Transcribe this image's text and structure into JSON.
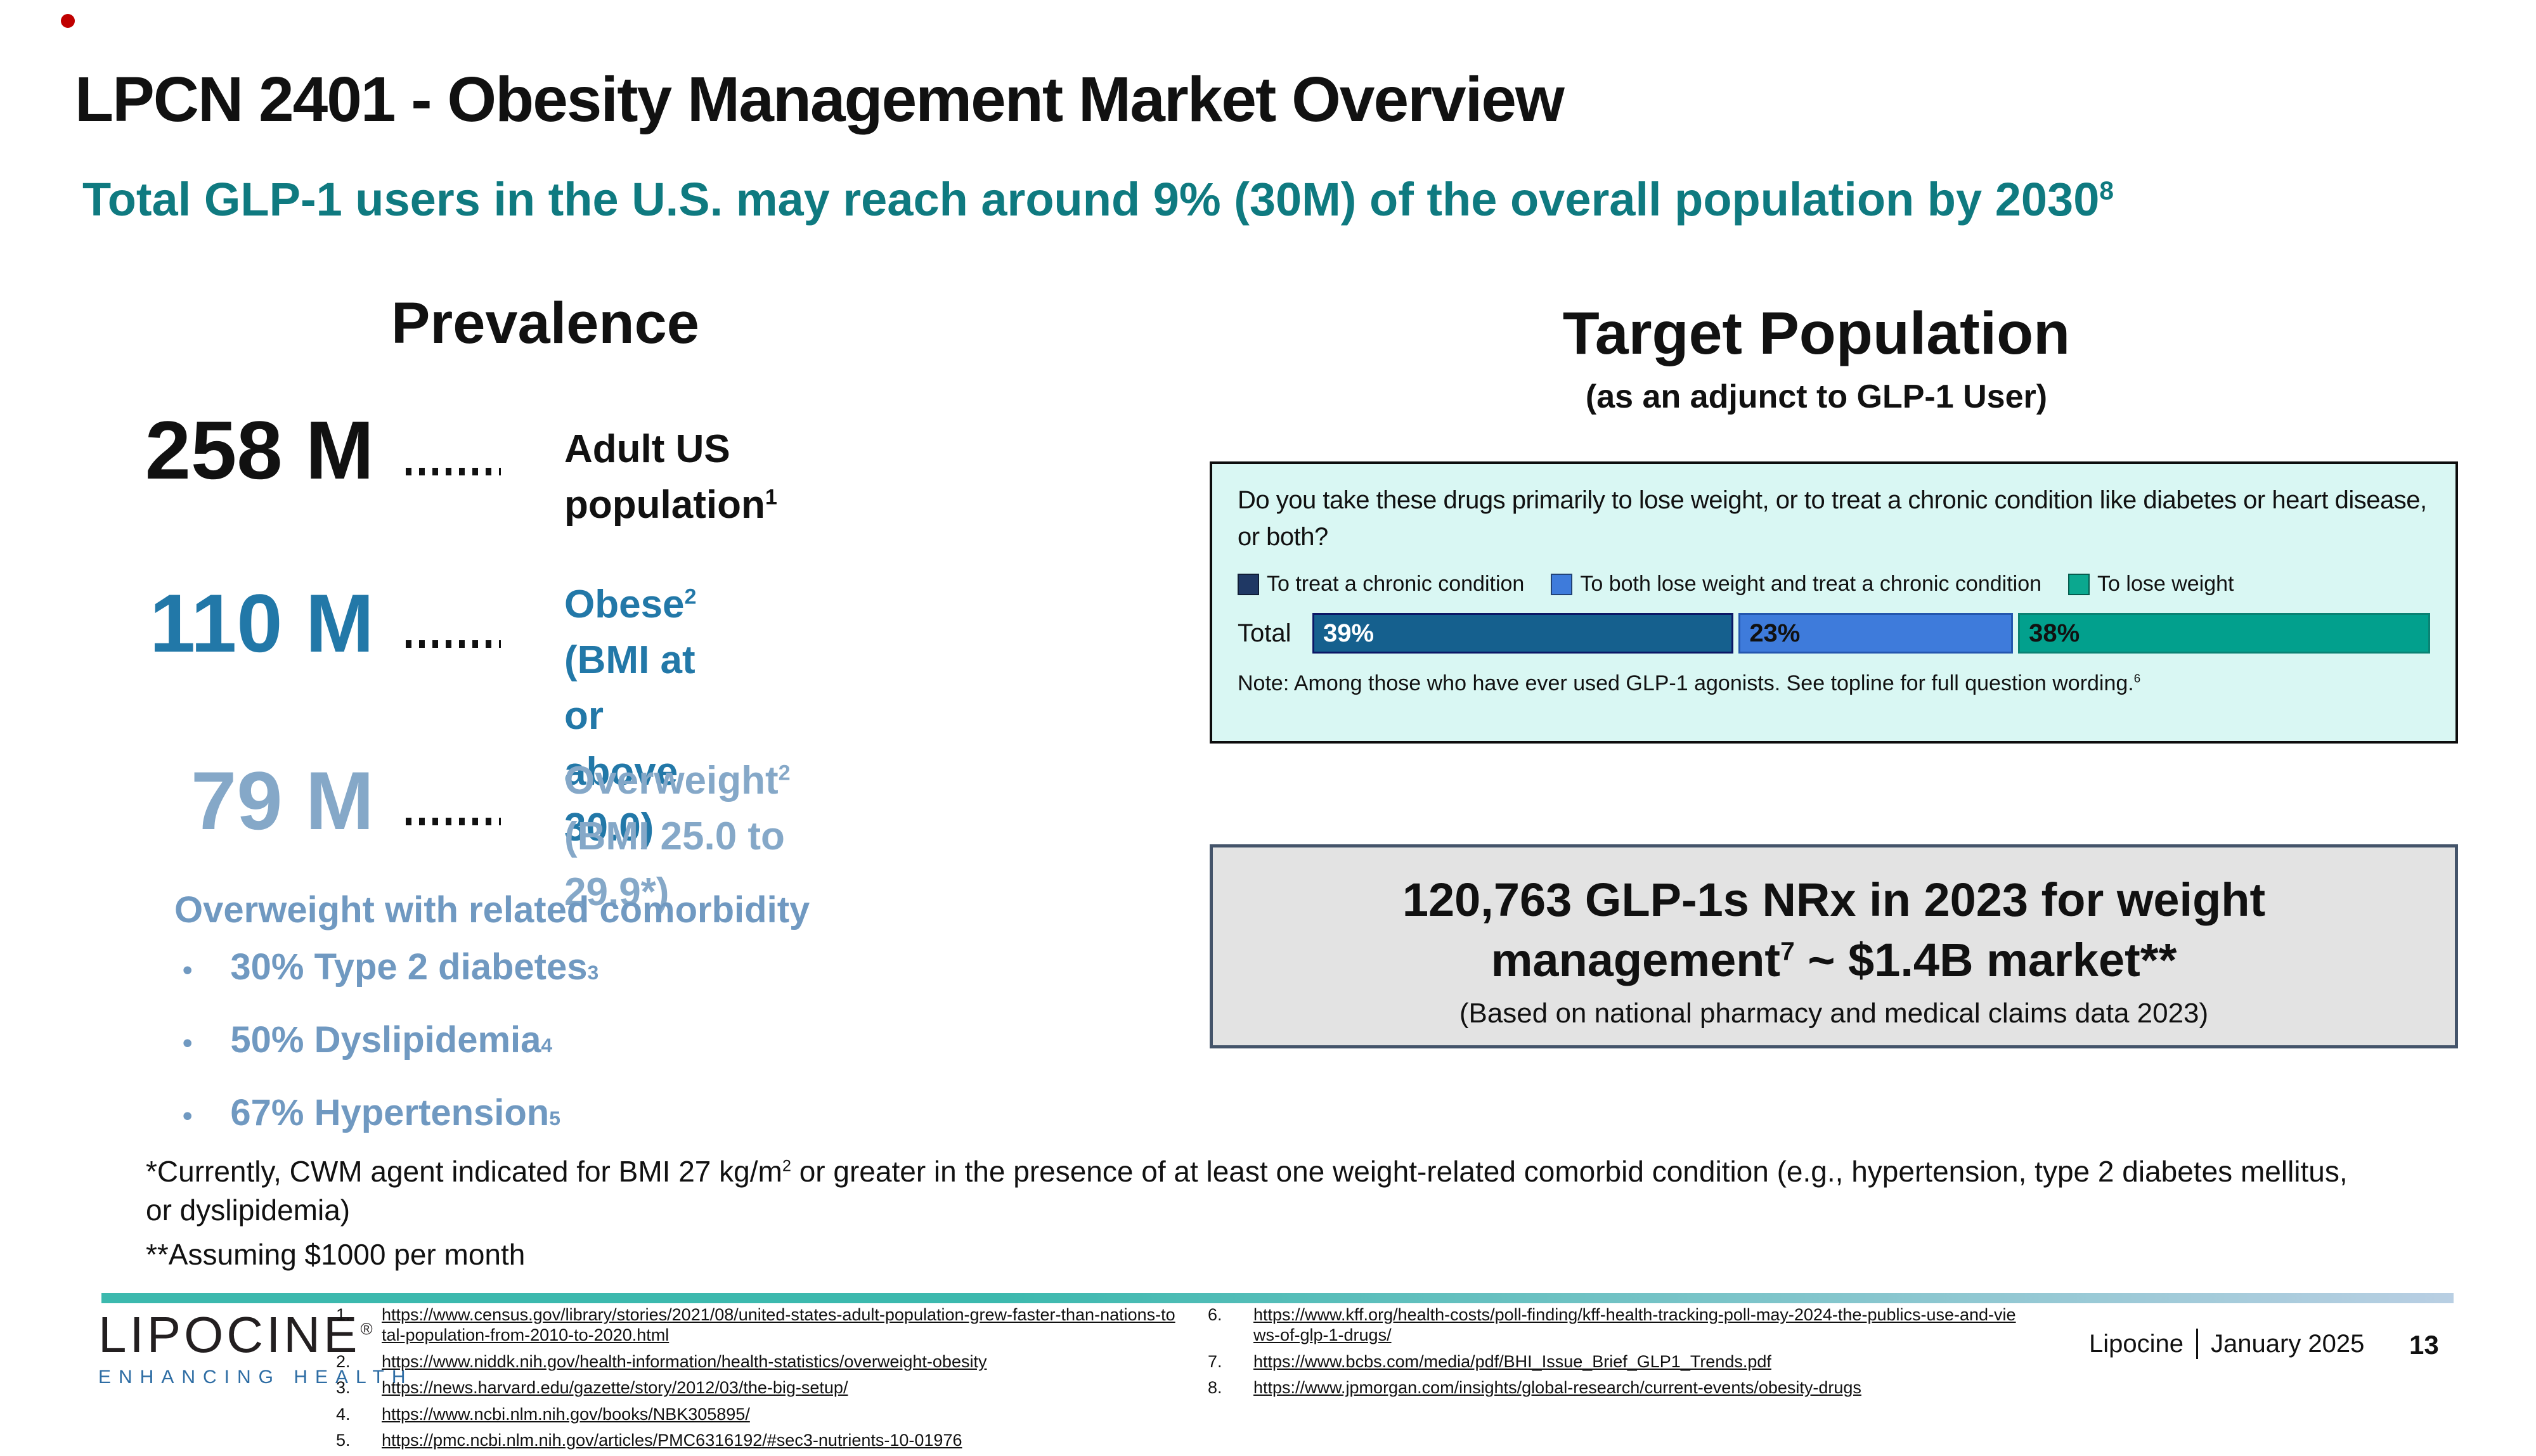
{
  "slide": {
    "title": "LPCN 2401 - Obesity Management Market Overview",
    "subtitle_main": "Total GLP-1 users in the U.S. may reach around 9% (30M) of the overall population by 2030",
    "subtitle_sup": "8",
    "page_number": "13",
    "footer_company": "Lipocine",
    "footer_date": "January 2025"
  },
  "logo": {
    "name": "LIPOCINE",
    "reg": "®",
    "tagline": "ENHANCING HEALTH"
  },
  "prevalence": {
    "heading": "Prevalence",
    "rows": [
      {
        "value": "258 M",
        "label": "Adult US population",
        "sup": "1",
        "label2": "",
        "color": "#111111"
      },
      {
        "value": "110 M",
        "label": "Obese",
        "sup": "2",
        "label2": "(BMI at or above 30.0)",
        "color": "#2278a8"
      },
      {
        "value": "79 M",
        "label": "Overweight",
        "sup": "2",
        "label2": "(BMI 25.0 to 29.9*)",
        "color": "#85a8c8"
      }
    ],
    "comorbidity": {
      "heading": "Overweight with related comorbidity",
      "bullet_glyph": "•",
      "bullets": [
        {
          "text": "30% Type 2 diabetes",
          "sup": "3"
        },
        {
          "text": "50% Dyslipidemia",
          "sup": "4"
        },
        {
          "text": "67% Hypertension",
          "sup": "5"
        }
      ]
    }
  },
  "target": {
    "heading": "Target Population",
    "subheading": "(as an adjunct to GLP-1 User)",
    "survey": {
      "question": "Do you take these drugs primarily to lose weight, or to treat a chronic condition like diabetes or heart disease, or both?",
      "legend": [
        {
          "label": "To treat a chronic condition",
          "color": "#1f3864"
        },
        {
          "label": "To both lose weight and treat a chronic condition",
          "color": "#3e7bdb"
        },
        {
          "label": "To lose weight",
          "color": "#0ba88f"
        }
      ],
      "row_label": "Total",
      "segments": [
        {
          "label": "39%",
          "value": 39,
          "fill": "#15608e",
          "border": "#0b1766",
          "text_color": "#ffffff"
        },
        {
          "label": "23%",
          "value": 23,
          "fill": "#3e7bdb",
          "border": "#2456ae",
          "text_color": "#111111"
        },
        {
          "label": "38%",
          "value": 38,
          "fill": "#02a08d",
          "border": "#0a8273",
          "text_color": "#111111"
        }
      ],
      "note": "Note: Among those who have ever used GLP-1 agonists. See topline for full question wording.",
      "note_sup": "6"
    },
    "market_box": {
      "text_main": "120,763 GLP-1s NRx in 2023 for weight management",
      "text_sup": "7",
      "text_rest": " ~ $1.4B market**",
      "subnote": "(Based on national pharmacy and medical claims data 2023)"
    }
  },
  "chart_data": {
    "type": "bar",
    "orientation": "horizontal-stacked",
    "title": "Do you take these drugs primarily to lose weight, or to treat a chronic condition like diabetes or heart disease, or both?",
    "categories": [
      "Total"
    ],
    "series": [
      {
        "name": "To treat a chronic condition",
        "values": [
          39
        ],
        "color": "#1f3864"
      },
      {
        "name": "To both lose weight and treat a chronic condition",
        "values": [
          23
        ],
        "color": "#3e7bdb"
      },
      {
        "name": "To lose weight",
        "values": [
          38
        ],
        "color": "#0ba88f"
      }
    ],
    "unit": "%",
    "xlim": [
      0,
      100
    ],
    "legend_position": "top",
    "note": "Note: Among those who have ever used GLP-1 agonists. See topline for full question wording."
  },
  "footnotes": {
    "line1_a": "*Currently, CWM agent indicated for BMI 27 kg/m",
    "line1_sup": "2",
    "line1_b": " or greater in the presence of at least one weight-related comorbid condition (e.g., hypertension, type 2 diabetes mellitus, or dyslipidemia)",
    "line2": "**Assuming $1000 per month"
  },
  "references": {
    "col1": [
      {
        "num": "1.",
        "url": "https://www.census.gov/library/stories/2021/08/united-states-adult-population-grew-faster-than-nations-total-population-from-2010-to-2020.html"
      },
      {
        "num": "2.",
        "url": "https://www.niddk.nih.gov/health-information/health-statistics/overweight-obesity"
      },
      {
        "num": "3.",
        "url": "https://news.harvard.edu/gazette/story/2012/03/the-big-setup/"
      },
      {
        "num": "4.",
        "url": "https://www.ncbi.nlm.nih.gov/books/NBK305895/"
      },
      {
        "num": "5.",
        "url": "https://pmc.ncbi.nlm.nih.gov/articles/PMC6316192/#sec3-nutrients-10-01976"
      }
    ],
    "col2": [
      {
        "num": "6.",
        "url": "https://www.kff.org/health-costs/poll-finding/kff-health-tracking-poll-may-2024-the-publics-use-and-views-of-glp-1-drugs/"
      },
      {
        "num": "7.",
        "url": "https://www.bcbs.com/media/pdf/BHI_Issue_Brief_GLP1_Trends.pdf"
      },
      {
        "num": "8.",
        "url": "https://www.jpmorgan.com/insights/global-research/current-events/obesity-drugs"
      }
    ]
  },
  "colors": {
    "subtitle_teal": "#0f7a80",
    "survey_box_bg": "#d9f7f3",
    "survey_box_border": "#0d0d0d",
    "market_box_bg": "#e3e3e3",
    "market_box_border": "#44546a",
    "divider_start": "#3cb9ae",
    "divider_end": "#b9cfe3",
    "logo_tagline_blue": "#2e6da4",
    "red_dot": "#c00000"
  }
}
